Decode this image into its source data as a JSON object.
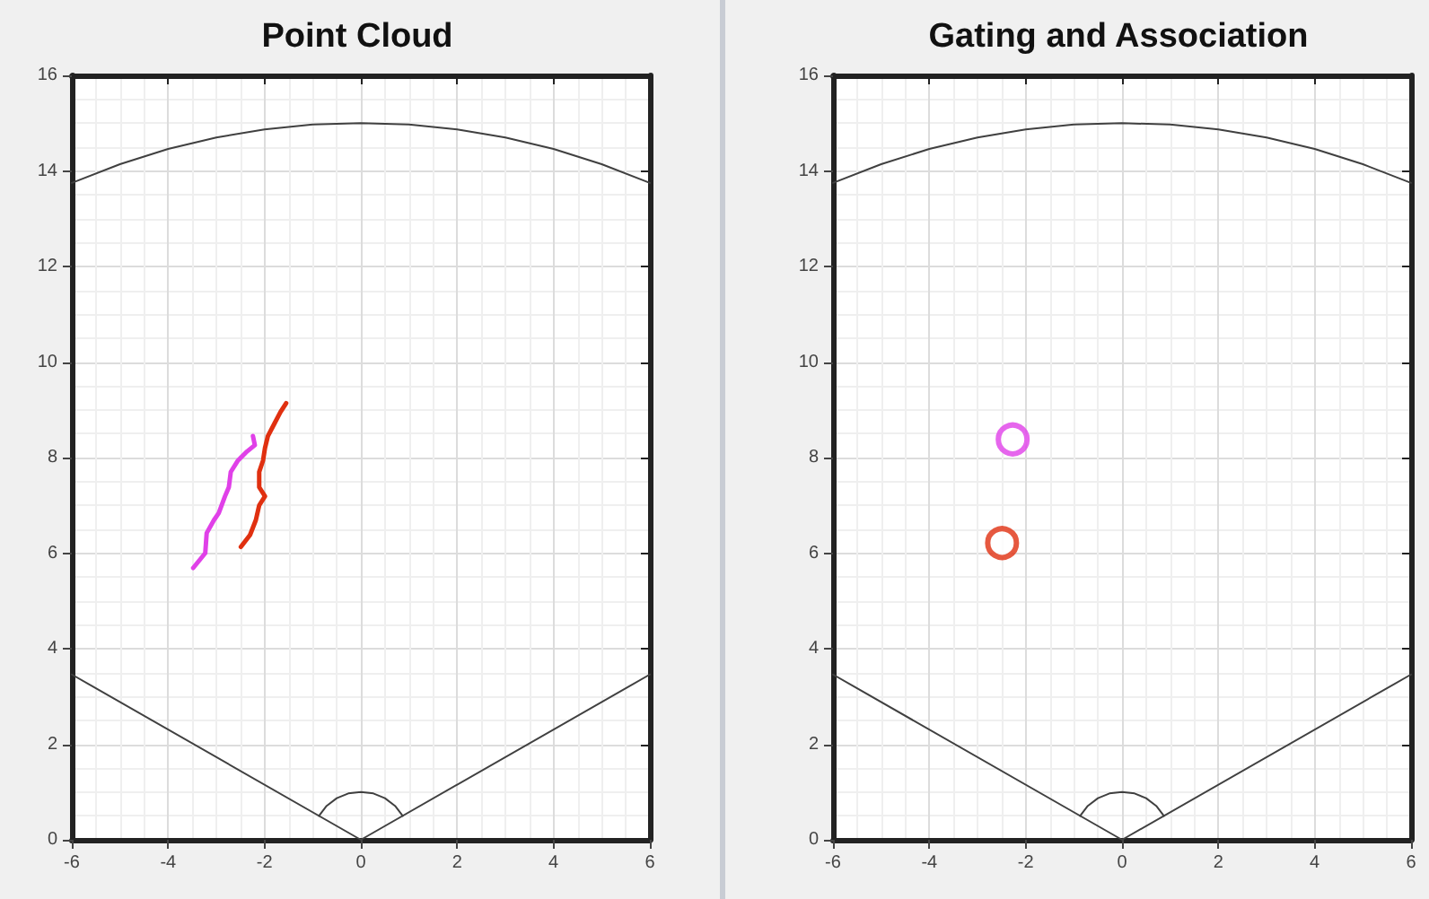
{
  "chart_data": [
    {
      "type": "line",
      "title": "Point Cloud",
      "xlim": [
        -6,
        6
      ],
      "ylim": [
        0,
        16
      ],
      "xticks": [
        -6,
        -4,
        -2,
        0,
        2,
        4,
        6
      ],
      "yticks": [
        0,
        2,
        4,
        6,
        8,
        10,
        12,
        14,
        16
      ],
      "grid": true,
      "marker": "none",
      "line_style": "solid",
      "series": [
        {
          "color": "#404040",
          "x": [
            -6,
            -5,
            -4,
            -3,
            -2,
            -1,
            0,
            1,
            2,
            3,
            4,
            5,
            6
          ],
          "values": [
            13.75,
            14.14,
            14.46,
            14.7,
            14.87,
            14.97,
            15,
            14.97,
            14.87,
            14.7,
            14.46,
            14.14,
            13.75
          ]
        },
        {
          "color": "#404040",
          "x": [
            -6,
            0,
            6
          ],
          "values": [
            3.46,
            0,
            3.46
          ]
        },
        {
          "color": "#404040",
          "x": [
            -0.87,
            -0.71,
            -0.5,
            -0.26,
            0,
            0.26,
            0.5,
            0.71,
            0.87
          ],
          "values": [
            0.5,
            0.71,
            0.87,
            0.97,
            1,
            0.97,
            0.87,
            0.71,
            0.5
          ]
        },
        {
          "color": "#e040e8",
          "x": [
            -3.48,
            -3.23,
            -3.2,
            -3.05,
            -2.95,
            -2.82,
            -2.74,
            -2.7,
            -2.55,
            -2.36,
            -2.2,
            -2.24
          ],
          "values": [
            5.69,
            6.0,
            6.42,
            6.69,
            6.84,
            7.19,
            7.38,
            7.7,
            7.94,
            8.13,
            8.26,
            8.45
          ]
        },
        {
          "color": "#e03010",
          "x": [
            -2.49,
            -2.3,
            -2.18,
            -2.11,
            -1.99,
            -2.11,
            -2.11,
            -2.03,
            -1.99,
            -1.93,
            -1.8,
            -1.67,
            -1.55
          ],
          "values": [
            6.13,
            6.38,
            6.69,
            7.0,
            7.19,
            7.38,
            7.7,
            7.94,
            8.2,
            8.45,
            8.7,
            8.95,
            9.14
          ]
        }
      ]
    },
    {
      "type": "line",
      "title": "Gating and Association",
      "xlim": [
        -6,
        6
      ],
      "ylim": [
        0,
        16
      ],
      "xticks": [
        -6,
        -4,
        -2,
        0,
        2,
        4,
        6
      ],
      "yticks": [
        0,
        2,
        4,
        6,
        8,
        10,
        12,
        14,
        16
      ],
      "grid": true,
      "marker": "none",
      "line_style": "solid",
      "series": [
        {
          "color": "#404040",
          "x": [
            -6,
            -5,
            -4,
            -3,
            -2,
            -1,
            0,
            1,
            2,
            3,
            4,
            5,
            6
          ],
          "values": [
            13.75,
            14.14,
            14.46,
            14.7,
            14.87,
            14.97,
            15,
            14.97,
            14.87,
            14.7,
            14.46,
            14.14,
            13.75
          ]
        },
        {
          "color": "#404040",
          "x": [
            -6,
            0,
            6
          ],
          "values": [
            3.46,
            0,
            3.46
          ]
        },
        {
          "color": "#404040",
          "x": [
            -0.87,
            -0.71,
            -0.5,
            -0.26,
            0,
            0.26,
            0.5,
            0.71,
            0.87
          ],
          "values": [
            0.5,
            0.71,
            0.87,
            0.97,
            1,
            0.97,
            0.87,
            0.71,
            0.5
          ]
        },
        {
          "type": "scatter",
          "marker": "circle",
          "color": "#e040e8",
          "x": [
            -2.27
          ],
          "values": [
            8.38
          ]
        },
        {
          "type": "scatter",
          "marker": "circle",
          "color": "#e03010",
          "x": [
            -2.49
          ],
          "values": [
            6.21
          ]
        }
      ]
    }
  ]
}
